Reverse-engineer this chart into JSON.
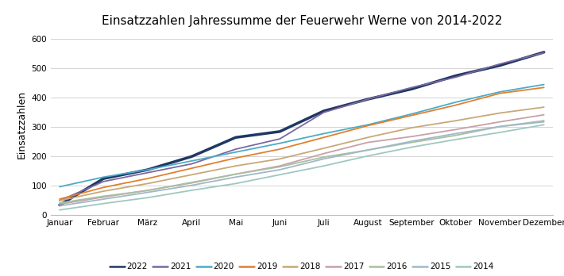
{
  "title": "Einsatzzahlen Jahressumme der Feuerwehr Werne von 2014-2022",
  "ylabel": "Einsatzzahlen",
  "months": [
    "Januar",
    "Februar",
    "März",
    "April",
    "Mai",
    "Juni",
    "Juli",
    "August",
    "September",
    "Oktober",
    "November",
    "Dezember"
  ],
  "ylim": [
    0,
    620
  ],
  "yticks": [
    0,
    100,
    200,
    300,
    400,
    500,
    600
  ],
  "series": {
    "2022": {
      "color": "#1F3864",
      "linewidth": 2.5,
      "values": [
        35,
        125,
        155,
        200,
        265,
        285,
        355,
        395,
        430,
        475,
        510,
        555
      ]
    },
    "2021": {
      "color": "#7B68A0",
      "linewidth": 1.3,
      "values": [
        50,
        115,
        145,
        175,
        225,
        260,
        350,
        395,
        435,
        470,
        515,
        553
      ]
    },
    "2020": {
      "color": "#4BACC6",
      "linewidth": 1.3,
      "values": [
        97,
        130,
        155,
        185,
        215,
        245,
        278,
        308,
        345,
        385,
        420,
        445
      ]
    },
    "2019": {
      "color": "#E08030",
      "linewidth": 1.3,
      "values": [
        55,
        95,
        125,
        160,
        195,
        225,
        265,
        305,
        340,
        375,
        415,
        435
      ]
    },
    "2018": {
      "color": "#C8A878",
      "linewidth": 1.3,
      "values": [
        50,
        82,
        108,
        138,
        168,
        192,
        228,
        265,
        298,
        322,
        348,
        368
      ]
    },
    "2017": {
      "color": "#C8A0A8",
      "linewidth": 1.3,
      "values": [
        38,
        62,
        85,
        110,
        140,
        168,
        210,
        248,
        268,
        292,
        318,
        342
      ]
    },
    "2016": {
      "color": "#A8C0A0",
      "linewidth": 1.3,
      "values": [
        42,
        65,
        84,
        112,
        140,
        165,
        198,
        222,
        248,
        272,
        302,
        322
      ]
    },
    "2015": {
      "color": "#A0B8C8",
      "linewidth": 1.3,
      "values": [
        32,
        55,
        78,
        102,
        130,
        155,
        192,
        222,
        252,
        278,
        302,
        318
      ]
    },
    "2014": {
      "color": "#9EC8C0",
      "linewidth": 1.3,
      "values": [
        18,
        40,
        60,
        85,
        108,
        138,
        168,
        202,
        232,
        258,
        282,
        308
      ]
    }
  },
  "legend_order": [
    "2022",
    "2021",
    "2020",
    "2019",
    "2018",
    "2017",
    "2016",
    "2015",
    "2014"
  ],
  "background_color": "#ffffff",
  "grid_color": "#d3d3d3"
}
